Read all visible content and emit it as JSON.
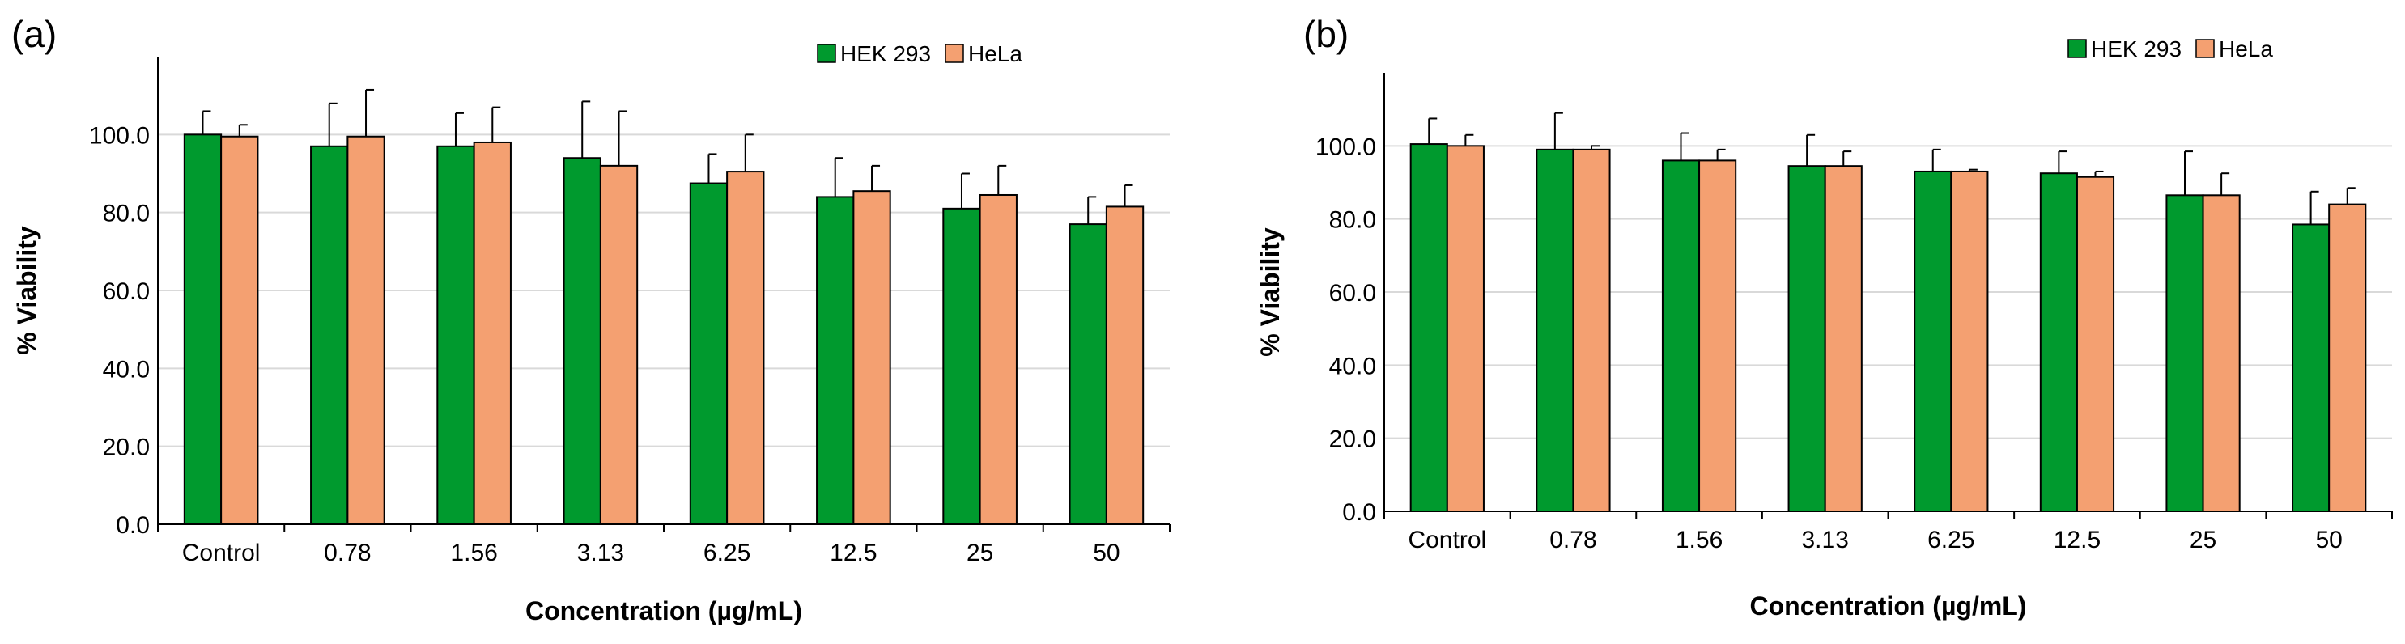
{
  "chart_data": [
    {
      "type": "bar",
      "panel_label": "(a)",
      "categories": [
        "Control",
        "0.78",
        "1.56",
        "3.13",
        "6.25",
        "12.5",
        "25",
        "50"
      ],
      "xlabel": "Concentration (µg/mL)",
      "ylabel": "% Viability",
      "ylim": [
        0,
        120
      ],
      "yticks": [
        "0.0",
        "20.0",
        "40.0",
        "60.0",
        "80.0",
        "100.0"
      ],
      "grid": true,
      "legend_position": "top-right",
      "series": [
        {
          "name": "HEK 293",
          "color": "#009a2e",
          "values": [
            100.0,
            97.0,
            97.0,
            94.0,
            87.5,
            84.0,
            81.0,
            77.0
          ],
          "errors": [
            6.0,
            11.0,
            8.5,
            14.5,
            7.5,
            10.0,
            9.0,
            7.0
          ]
        },
        {
          "name": "HeLa",
          "color": "#f4a071",
          "values": [
            99.5,
            99.5,
            98.0,
            92.0,
            90.5,
            85.5,
            84.5,
            81.5
          ],
          "errors": [
            3.0,
            12.0,
            9.0,
            14.0,
            9.5,
            6.5,
            7.5,
            5.5
          ]
        }
      ]
    },
    {
      "type": "bar",
      "panel_label": "(b)",
      "categories": [
        "Control",
        "0.78",
        "1.56",
        "3.13",
        "6.25",
        "12.5",
        "25",
        "50"
      ],
      "xlabel": "Concentration (µg/mL)",
      "ylabel": "% Viability",
      "ylim": [
        0,
        120
      ],
      "yticks": [
        "0.0",
        "20.0",
        "40.0",
        "60.0",
        "80.0",
        "100.0"
      ],
      "grid": true,
      "legend_position": "top-right",
      "series": [
        {
          "name": "HEK 293",
          "color": "#009a2e",
          "values": [
            100.5,
            99.0,
            96.0,
            94.5,
            93.0,
            92.5,
            86.5,
            78.5
          ],
          "errors": [
            7.0,
            10.0,
            7.5,
            8.5,
            6.0,
            6.0,
            12.0,
            9.0
          ]
        },
        {
          "name": "HeLa",
          "color": "#f4a071",
          "values": [
            100.0,
            99.0,
            96.0,
            94.5,
            93.0,
            91.5,
            86.5,
            84.0
          ],
          "errors": [
            3.0,
            1.0,
            3.0,
            4.0,
            0.5,
            1.5,
            6.0,
            4.5
          ]
        }
      ]
    }
  ]
}
